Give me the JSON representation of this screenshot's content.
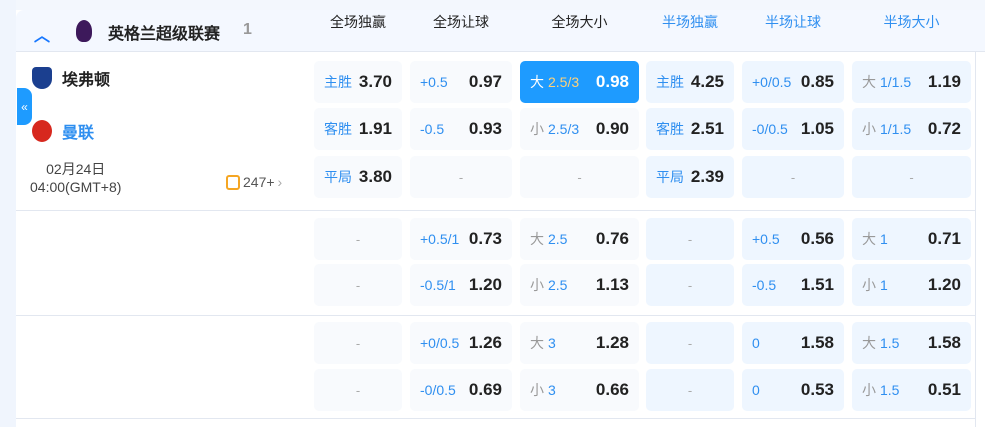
{
  "league": {
    "name": "英格兰超级联赛",
    "count": "1"
  },
  "columns": [
    {
      "label": "全场独赢",
      "half": false
    },
    {
      "label": "全场让球",
      "half": false
    },
    {
      "label": "全场大小",
      "half": false
    },
    {
      "label": "半场独赢",
      "half": true
    },
    {
      "label": "半场让球",
      "half": true
    },
    {
      "label": "半场大小",
      "half": true
    }
  ],
  "match": {
    "home": "埃弗顿",
    "away": "曼联",
    "date": "02月24日",
    "time": "04:00(GMT+8)",
    "more": "247+"
  },
  "expand_label": "«",
  "colors": {
    "accent": "#1e9bff",
    "line": "#2f8ff0",
    "active_line": "#ffd27a"
  },
  "groups": [
    {
      "rows": [
        [
          {
            "pre": "主胜",
            "odds": "3.70"
          },
          {
            "line": "+0.5",
            "odds": "0.97"
          },
          {
            "pre": "大",
            "line": "2.5/3",
            "odds": "0.98",
            "active": true
          },
          {
            "pre": "主胜",
            "odds": "4.25"
          },
          {
            "line": "+0/0.5",
            "odds": "0.85"
          },
          {
            "pre": "大",
            "line": "1/1.5",
            "odds": "1.19"
          }
        ],
        [
          {
            "pre": "客胜",
            "odds": "1.91"
          },
          {
            "line": "-0.5",
            "odds": "0.93"
          },
          {
            "pre": "小",
            "line": "2.5/3",
            "odds": "0.90"
          },
          {
            "pre": "客胜",
            "odds": "2.51"
          },
          {
            "line": "-0/0.5",
            "odds": "1.05"
          },
          {
            "pre": "小",
            "line": "1/1.5",
            "odds": "0.72"
          }
        ],
        [
          {
            "pre": "平局",
            "odds": "3.80"
          },
          {
            "empty": "-"
          },
          {
            "empty": "-"
          },
          {
            "pre": "平局",
            "odds": "2.39"
          },
          {
            "empty": "-"
          },
          {
            "empty": "-"
          }
        ]
      ]
    },
    {
      "rows": [
        [
          {
            "empty": "-"
          },
          {
            "line": "+0.5/1",
            "odds": "0.73"
          },
          {
            "pre": "大",
            "line": "2.5",
            "odds": "0.76"
          },
          {
            "empty": "-"
          },
          {
            "line": "+0.5",
            "odds": "0.56"
          },
          {
            "pre": "大",
            "line": "1",
            "odds": "0.71"
          }
        ],
        [
          {
            "empty": "-"
          },
          {
            "line": "-0.5/1",
            "odds": "1.20"
          },
          {
            "pre": "小",
            "line": "2.5",
            "odds": "1.13"
          },
          {
            "empty": "-"
          },
          {
            "line": "-0.5",
            "odds": "1.51"
          },
          {
            "pre": "小",
            "line": "1",
            "odds": "1.20"
          }
        ]
      ]
    },
    {
      "rows": [
        [
          {
            "empty": "-"
          },
          {
            "line": "+0/0.5",
            "odds": "1.26"
          },
          {
            "pre": "大",
            "line": "3",
            "odds": "1.28"
          },
          {
            "empty": "-"
          },
          {
            "line": "0",
            "odds": "1.58"
          },
          {
            "pre": "大",
            "line": "1.5",
            "odds": "1.58"
          }
        ],
        [
          {
            "empty": "-"
          },
          {
            "line": "-0/0.5",
            "odds": "0.69"
          },
          {
            "pre": "小",
            "line": "3",
            "odds": "0.66"
          },
          {
            "empty": "-"
          },
          {
            "line": "0",
            "odds": "0.53"
          },
          {
            "pre": "小",
            "line": "1.5",
            "odds": "0.51"
          }
        ]
      ]
    }
  ]
}
